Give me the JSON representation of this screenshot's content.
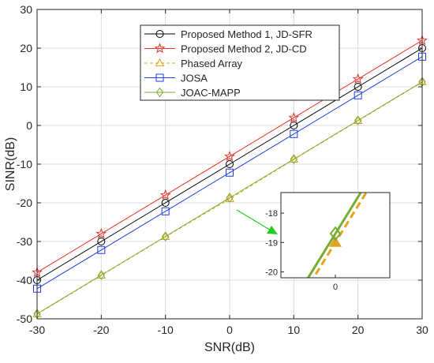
{
  "chart_data": {
    "type": "line",
    "xlabel": "SNR(dB)",
    "ylabel": "SINR(dB)",
    "xlim": [
      -30,
      30
    ],
    "ylim": [
      -50,
      30
    ],
    "xticks": [
      -30,
      -20,
      -10,
      0,
      10,
      20,
      30
    ],
    "yticks": [
      -50,
      -40,
      -30,
      -20,
      -10,
      0,
      10,
      20,
      30
    ],
    "grid": true,
    "legend_position": "top-right",
    "x": [
      -30,
      -20,
      -10,
      0,
      10,
      20,
      30
    ],
    "series": [
      {
        "name": "Proposed Method 1, JD-SFR",
        "values": [
          -40,
          -30,
          -20,
          -10,
          0,
          10,
          20
        ],
        "color": "#000000",
        "marker": "circle",
        "dash": "solid"
      },
      {
        "name": "Proposed Method 2, JD-CD",
        "values": [
          -38,
          -28,
          -18,
          -8,
          2,
          12,
          22
        ],
        "color": "#e8332a",
        "marker": "star",
        "dash": "solid"
      },
      {
        "name": "Phased Array",
        "values": [
          -48.8,
          -38.8,
          -28.8,
          -19,
          -8.8,
          1.2,
          11.2
        ],
        "color": "#e5a21d",
        "marker": "triangle",
        "dash": "dashed"
      },
      {
        "name": "JOSA",
        "values": [
          -42.2,
          -32.2,
          -22.2,
          -12.2,
          -2.2,
          7.8,
          17.8
        ],
        "color": "#1f3fe0",
        "marker": "square",
        "dash": "solid"
      },
      {
        "name": "JOAC-MAPP",
        "values": [
          -48.7,
          -38.7,
          -28.7,
          -18.7,
          -8.7,
          1.3,
          11.3
        ],
        "color": "#77ac30",
        "marker": "diamond",
        "dash": "solid"
      }
    ],
    "inset": {
      "xlim": [
        -3,
        3
      ],
      "ylim": [
        -20.2,
        -17.3
      ],
      "xticks": [
        0
      ],
      "yticks": [
        -20,
        -19,
        -18
      ],
      "arrow_color": "#22cc22"
    }
  }
}
